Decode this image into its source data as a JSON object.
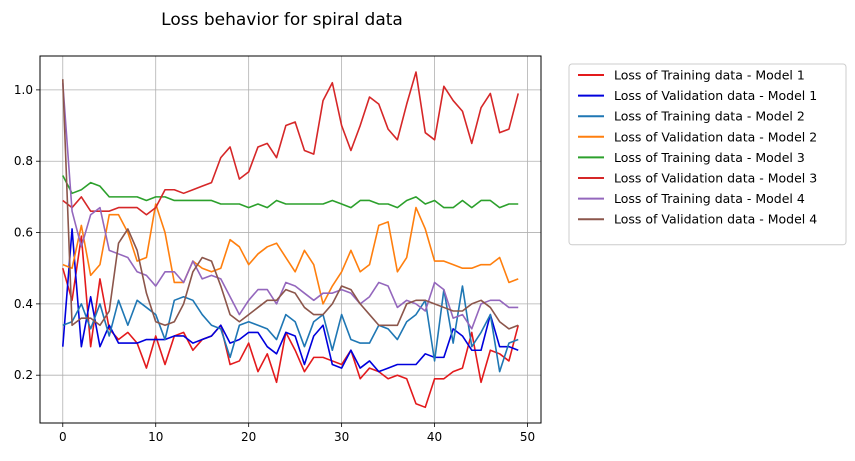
{
  "chart_data": {
    "type": "line",
    "title": "Loss behavior for spiral data",
    "xlabel": "",
    "ylabel": "",
    "xlim": [
      -2.45,
      51.45
    ],
    "ylim": [
      0.066,
      1.095
    ],
    "xticks": [
      0,
      10,
      20,
      30,
      40,
      50
    ],
    "yticks": [
      0.2,
      0.4,
      0.6,
      0.8,
      1.0
    ],
    "xtick_labels": [
      "0",
      "10",
      "20",
      "30",
      "40",
      "50"
    ],
    "ytick_labels": [
      "0.2",
      "0.4",
      "0.6",
      "0.8",
      "1.0"
    ],
    "grid": true,
    "legend_position": "outside-top-right",
    "x": [
      0,
      1,
      2,
      3,
      4,
      5,
      6,
      7,
      8,
      9,
      10,
      11,
      12,
      13,
      14,
      15,
      16,
      17,
      18,
      19,
      20,
      21,
      22,
      23,
      24,
      25,
      26,
      27,
      28,
      29,
      30,
      31,
      32,
      33,
      34,
      35,
      36,
      37,
      38,
      39,
      40,
      41,
      42,
      43,
      44,
      45,
      46,
      47,
      48,
      49
    ],
    "series": [
      {
        "name": "Loss of Training data - Model 1",
        "color": "#e31a1c",
        "values": [
          0.5,
          0.41,
          0.59,
          0.28,
          0.47,
          0.33,
          0.3,
          0.32,
          0.29,
          0.22,
          0.31,
          0.23,
          0.31,
          0.32,
          0.27,
          0.3,
          0.31,
          0.34,
          0.23,
          0.24,
          0.29,
          0.21,
          0.26,
          0.18,
          0.32,
          0.27,
          0.21,
          0.25,
          0.25,
          0.24,
          0.23,
          0.27,
          0.19,
          0.22,
          0.21,
          0.19,
          0.2,
          0.19,
          0.12,
          0.11,
          0.19,
          0.19,
          0.21,
          0.22,
          0.32,
          0.18,
          0.27,
          0.26,
          0.24,
          0.34
        ]
      },
      {
        "name": "Loss of Validation data - Model 1",
        "color": "#0000dd",
        "values": [
          0.28,
          0.61,
          0.28,
          0.42,
          0.28,
          0.34,
          0.29,
          0.29,
          0.29,
          0.3,
          0.3,
          0.3,
          0.31,
          0.31,
          0.29,
          0.3,
          0.31,
          0.34,
          0.29,
          0.3,
          0.32,
          0.32,
          0.28,
          0.26,
          0.32,
          0.31,
          0.23,
          0.31,
          0.34,
          0.23,
          0.22,
          0.27,
          0.22,
          0.24,
          0.21,
          0.22,
          0.23,
          0.23,
          0.23,
          0.26,
          0.25,
          0.25,
          0.33,
          0.31,
          0.27,
          0.27,
          0.37,
          0.28,
          0.28,
          0.27
        ]
      },
      {
        "name": "Loss of Training data - Model 2",
        "color": "#1f77b4",
        "values": [
          0.34,
          0.35,
          0.4,
          0.33,
          0.4,
          0.31,
          0.41,
          0.34,
          0.41,
          0.39,
          0.37,
          0.3,
          0.41,
          0.42,
          0.41,
          0.37,
          0.34,
          0.33,
          0.25,
          0.34,
          0.35,
          0.34,
          0.33,
          0.3,
          0.37,
          0.35,
          0.28,
          0.35,
          0.37,
          0.27,
          0.37,
          0.3,
          0.29,
          0.29,
          0.34,
          0.33,
          0.3,
          0.35,
          0.37,
          0.41,
          0.24,
          0.44,
          0.29,
          0.45,
          0.28,
          0.32,
          0.37,
          0.21,
          0.29,
          0.3
        ]
      },
      {
        "name": "Loss of Validation data - Model 2",
        "color": "#ff7f0e",
        "values": [
          0.51,
          0.5,
          0.62,
          0.48,
          0.51,
          0.65,
          0.65,
          0.6,
          0.52,
          0.53,
          0.68,
          0.6,
          0.46,
          0.46,
          0.52,
          0.5,
          0.49,
          0.5,
          0.58,
          0.56,
          0.51,
          0.54,
          0.56,
          0.57,
          0.53,
          0.49,
          0.55,
          0.51,
          0.4,
          0.45,
          0.49,
          0.55,
          0.49,
          0.51,
          0.62,
          0.63,
          0.49,
          0.53,
          0.67,
          0.61,
          0.52,
          0.52,
          0.51,
          0.5,
          0.5,
          0.51,
          0.51,
          0.53,
          0.46,
          0.47
        ]
      },
      {
        "name": "Loss of Training data - Model 3",
        "color": "#2ca02c",
        "values": [
          0.76,
          0.71,
          0.72,
          0.74,
          0.73,
          0.7,
          0.7,
          0.7,
          0.7,
          0.69,
          0.7,
          0.7,
          0.69,
          0.69,
          0.69,
          0.69,
          0.69,
          0.68,
          0.68,
          0.68,
          0.67,
          0.68,
          0.67,
          0.69,
          0.68,
          0.68,
          0.68,
          0.68,
          0.68,
          0.69,
          0.68,
          0.67,
          0.69,
          0.69,
          0.68,
          0.68,
          0.67,
          0.69,
          0.7,
          0.68,
          0.69,
          0.67,
          0.67,
          0.69,
          0.67,
          0.69,
          0.69,
          0.67,
          0.68,
          0.68
        ]
      },
      {
        "name": "Loss of Validation data - Model 3",
        "color": "#d62728",
        "values": [
          0.69,
          0.67,
          0.7,
          0.66,
          0.66,
          0.66,
          0.67,
          0.67,
          0.67,
          0.65,
          0.67,
          0.72,
          0.72,
          0.71,
          0.72,
          0.73,
          0.74,
          0.81,
          0.84,
          0.75,
          0.77,
          0.84,
          0.85,
          0.81,
          0.9,
          0.91,
          0.83,
          0.82,
          0.97,
          1.02,
          0.9,
          0.83,
          0.9,
          0.98,
          0.96,
          0.89,
          0.86,
          0.96,
          1.05,
          0.88,
          0.86,
          1.01,
          0.97,
          0.94,
          0.85,
          0.95,
          0.99,
          0.88,
          0.89,
          0.99
        ]
      },
      {
        "name": "Loss of Training data - Model 4",
        "color": "#9467bd",
        "values": [
          1.02,
          0.66,
          0.56,
          0.65,
          0.67,
          0.55,
          0.54,
          0.53,
          0.49,
          0.48,
          0.45,
          0.49,
          0.49,
          0.46,
          0.52,
          0.47,
          0.48,
          0.47,
          0.42,
          0.37,
          0.41,
          0.44,
          0.44,
          0.4,
          0.46,
          0.45,
          0.43,
          0.41,
          0.43,
          0.43,
          0.44,
          0.43,
          0.4,
          0.42,
          0.46,
          0.45,
          0.39,
          0.41,
          0.4,
          0.38,
          0.46,
          0.44,
          0.36,
          0.37,
          0.33,
          0.4,
          0.41,
          0.41,
          0.39,
          0.39
        ]
      },
      {
        "name": "Loss of Validation data - Model 4",
        "color": "#8c564b",
        "values": [
          1.03,
          0.34,
          0.36,
          0.36,
          0.34,
          0.38,
          0.57,
          0.61,
          0.55,
          0.43,
          0.35,
          0.34,
          0.35,
          0.4,
          0.49,
          0.53,
          0.52,
          0.45,
          0.37,
          0.35,
          0.37,
          0.39,
          0.41,
          0.41,
          0.44,
          0.43,
          0.39,
          0.37,
          0.37,
          0.4,
          0.45,
          0.44,
          0.4,
          0.37,
          0.34,
          0.34,
          0.34,
          0.4,
          0.41,
          0.41,
          0.4,
          0.39,
          0.38,
          0.38,
          0.4,
          0.41,
          0.39,
          0.35,
          0.33,
          0.34
        ]
      }
    ]
  }
}
